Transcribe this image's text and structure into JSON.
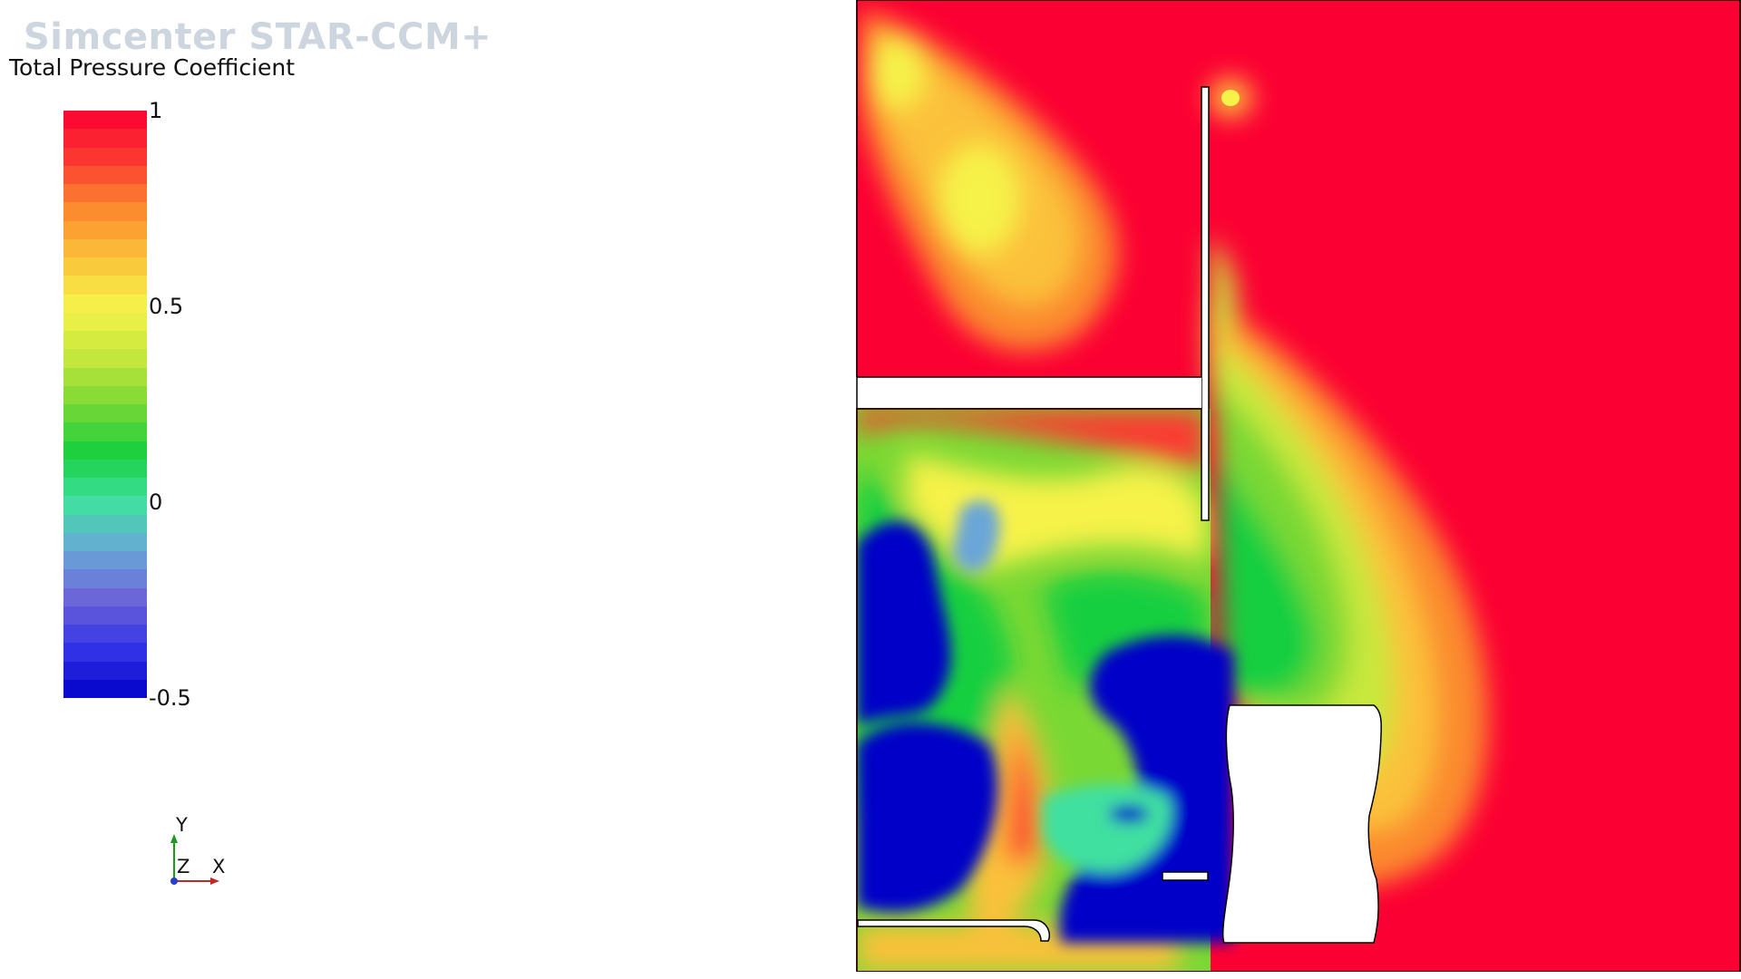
{
  "brand": "Simcenter STAR-CCM+",
  "legend": {
    "title": "Total Pressure Coefficient",
    "ticks": [
      "1",
      "0.5",
      "0",
      "-0.5"
    ]
  },
  "axes_triad": {
    "y": "Y",
    "z": "Z",
    "x": "X"
  },
  "chart_data": {
    "type": "heatmap",
    "title": "",
    "variable": "Total Pressure Coefficient",
    "range": [
      -0.5,
      1
    ],
    "colorbar_ticks": [
      1,
      0.5,
      0,
      -0.5
    ],
    "colorbar_bands": 32,
    "colormap": [
      "#0000c8",
      "#3333e8",
      "#6b63d8",
      "#6aa6d8",
      "#3fe0a0",
      "#19cf3f",
      "#7ad834",
      "#c8e83c",
      "#f6f24a",
      "#fbc13a",
      "#fb8a2e",
      "#fb3a30",
      "#fb0033"
    ]
  }
}
